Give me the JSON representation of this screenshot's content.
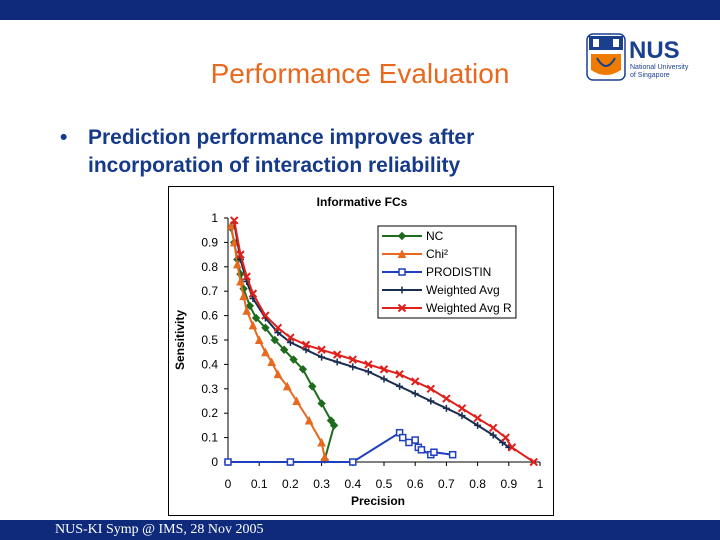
{
  "slide": {
    "title": "Performance Evaluation",
    "bullet_marker": "•",
    "bullet_text": "Prediction performance improves after incorporation of interaction reliability",
    "footer": "NUS-KI Symp @ IMS, 28 Nov 2005",
    "logo": {
      "wordmark": "NUS",
      "line1": "National University",
      "line2": "of Singapore",
      "colors": {
        "blue": "#1b3f8f",
        "orange": "#ef7c00"
      }
    },
    "colors": {
      "bar": "#0f2a7a",
      "title": "#e8681e",
      "bullet": "#163a8a"
    }
  },
  "chart_data": {
    "type": "line",
    "title": "Informative FCs",
    "xlabel": "Precision",
    "ylabel": "Sensitivity",
    "xlim": [
      0,
      1
    ],
    "ylim": [
      0,
      1
    ],
    "x_ticks": [
      "0",
      "0.1",
      "0.2",
      "0.3",
      "0.4",
      "0.5",
      "0.6",
      "0.7",
      "0.8",
      "0.9",
      "1"
    ],
    "y_ticks": [
      "0",
      "0.1",
      "0.2",
      "0.3",
      "0.4",
      "0.5",
      "0.6",
      "0.7",
      "0.8",
      "0.9",
      "1"
    ],
    "grid": false,
    "legend_position": "top-right",
    "series": [
      {
        "name": "NC",
        "color": "#1e6b1e",
        "marker": "diamond",
        "points": [
          [
            0.01,
            0.96
          ],
          [
            0.02,
            0.9
          ],
          [
            0.03,
            0.83
          ],
          [
            0.04,
            0.77
          ],
          [
            0.05,
            0.71
          ],
          [
            0.07,
            0.64
          ],
          [
            0.09,
            0.59
          ],
          [
            0.12,
            0.55
          ],
          [
            0.15,
            0.5
          ],
          [
            0.18,
            0.46
          ],
          [
            0.21,
            0.42
          ],
          [
            0.24,
            0.38
          ],
          [
            0.27,
            0.31
          ],
          [
            0.3,
            0.24
          ],
          [
            0.33,
            0.17
          ],
          [
            0.34,
            0.15
          ],
          [
            0.31,
            0.01
          ]
        ]
      },
      {
        "name": "Chi²",
        "color": "#e8681e",
        "marker": "triangle",
        "points": [
          [
            0.01,
            0.97
          ],
          [
            0.02,
            0.9
          ],
          [
            0.03,
            0.81
          ],
          [
            0.04,
            0.74
          ],
          [
            0.05,
            0.68
          ],
          [
            0.06,
            0.62
          ],
          [
            0.08,
            0.56
          ],
          [
            0.1,
            0.5
          ],
          [
            0.12,
            0.45
          ],
          [
            0.14,
            0.41
          ],
          [
            0.16,
            0.36
          ],
          [
            0.19,
            0.31
          ],
          [
            0.22,
            0.25
          ],
          [
            0.26,
            0.17
          ],
          [
            0.3,
            0.08
          ],
          [
            0.31,
            0.02
          ]
        ]
      },
      {
        "name": "PRODISTIN",
        "color": "#1f3fc0",
        "marker": "square",
        "points": [
          [
            0.0,
            0.0
          ],
          [
            0.2,
            0.0
          ],
          [
            0.4,
            0.0
          ],
          [
            0.55,
            0.12
          ],
          [
            0.56,
            0.1
          ],
          [
            0.58,
            0.08
          ],
          [
            0.6,
            0.09
          ],
          [
            0.61,
            0.06
          ],
          [
            0.62,
            0.05
          ],
          [
            0.65,
            0.03
          ],
          [
            0.66,
            0.04
          ],
          [
            0.72,
            0.03
          ]
        ]
      },
      {
        "name": "Weighted Avg",
        "color": "#1a2d52",
        "marker": "plus",
        "points": [
          [
            0.02,
            0.98
          ],
          [
            0.04,
            0.83
          ],
          [
            0.06,
            0.74
          ],
          [
            0.08,
            0.67
          ],
          [
            0.12,
            0.59
          ],
          [
            0.16,
            0.53
          ],
          [
            0.2,
            0.49
          ],
          [
            0.25,
            0.46
          ],
          [
            0.3,
            0.43
          ],
          [
            0.35,
            0.41
          ],
          [
            0.4,
            0.39
          ],
          [
            0.45,
            0.37
          ],
          [
            0.5,
            0.34
          ],
          [
            0.55,
            0.31
          ],
          [
            0.6,
            0.28
          ],
          [
            0.65,
            0.25
          ],
          [
            0.7,
            0.22
          ],
          [
            0.75,
            0.19
          ],
          [
            0.8,
            0.15
          ],
          [
            0.85,
            0.11
          ],
          [
            0.88,
            0.08
          ],
          [
            0.9,
            0.06
          ]
        ]
      },
      {
        "name": "Weighted Avg R",
        "color": "#e0201c",
        "marker": "x",
        "points": [
          [
            0.02,
            0.99
          ],
          [
            0.04,
            0.85
          ],
          [
            0.06,
            0.76
          ],
          [
            0.08,
            0.69
          ],
          [
            0.12,
            0.6
          ],
          [
            0.16,
            0.55
          ],
          [
            0.2,
            0.51
          ],
          [
            0.25,
            0.48
          ],
          [
            0.3,
            0.46
          ],
          [
            0.35,
            0.44
          ],
          [
            0.4,
            0.42
          ],
          [
            0.45,
            0.4
          ],
          [
            0.5,
            0.38
          ],
          [
            0.55,
            0.36
          ],
          [
            0.6,
            0.33
          ],
          [
            0.65,
            0.3
          ],
          [
            0.7,
            0.26
          ],
          [
            0.75,
            0.22
          ],
          [
            0.8,
            0.18
          ],
          [
            0.85,
            0.14
          ],
          [
            0.89,
            0.1
          ],
          [
            0.91,
            0.06
          ],
          [
            0.98,
            0.0
          ]
        ]
      }
    ]
  }
}
